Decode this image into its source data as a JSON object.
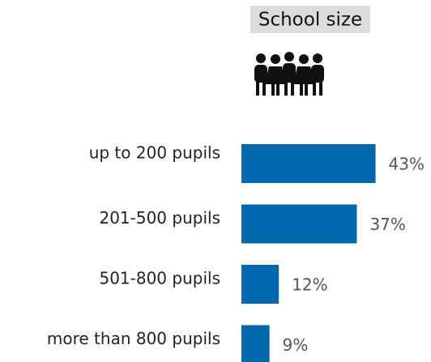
{
  "chart_data": {
    "type": "bar",
    "orientation": "horizontal",
    "title": "School size",
    "categories": [
      "up to 200 pupils",
      "201-500 pupils",
      "501-800 pupils",
      "more than 800 pupils"
    ],
    "values": [
      43,
      37,
      12,
      9
    ],
    "value_labels": [
      "43%",
      "37%",
      "12%",
      "9%"
    ],
    "color": "#0069ad"
  }
}
